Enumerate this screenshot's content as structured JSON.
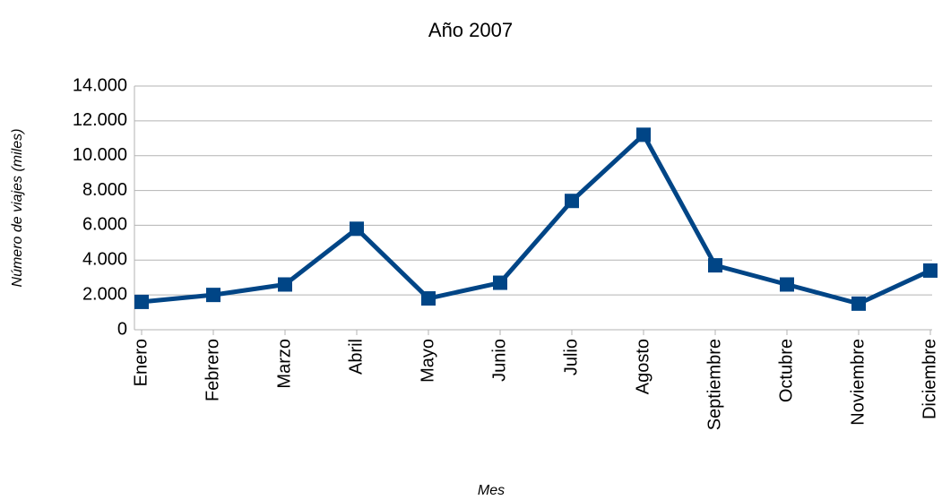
{
  "chart_data": {
    "type": "line",
    "title": "Año 2007",
    "x_label": "Mes",
    "y_label": "Número de viajes (miles)",
    "categories": [
      "Enero",
      "Febrero",
      "Marzo",
      "Abril",
      "Mayo",
      "Junio",
      "Julio",
      "Agosto",
      "Septiembre",
      "Octubre",
      "Noviembre",
      "Diciembre"
    ],
    "series": [
      {
        "name": "Número de viajes",
        "color": "#004586",
        "values": [
          1600,
          2000,
          2600,
          5800,
          1800,
          2700,
          7400,
          11200,
          3700,
          2600,
          1500,
          3400
        ]
      }
    ],
    "ylim": [
      0,
      14000
    ],
    "yticks": [
      0,
      {
        "value": 2000,
        "label": "2.000"
      },
      {
        "value": 4000,
        "label": "4.000"
      },
      {
        "value": 6000,
        "label": "6.000"
      },
      {
        "value": 8000,
        "label": "8.000"
      },
      {
        "value": 10000,
        "label": "10.000"
      },
      {
        "value": 12000,
        "label": "12.000"
      },
      {
        "value": 14000,
        "label": "14.000"
      }
    ],
    "grid": true
  }
}
